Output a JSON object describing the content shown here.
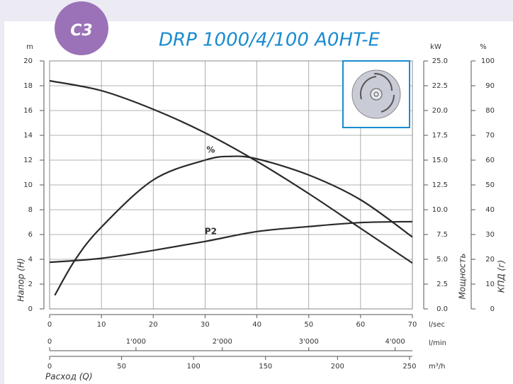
{
  "chart_data": {
    "type": "line",
    "badge": "C3",
    "title": "DRP 1000/4/100 A0HT-E",
    "y_unit": "m",
    "y2_unit": "kW",
    "y3_unit": "%",
    "y_label": "Напор (H)",
    "y2_label": "Мощность",
    "y3_label": "КПД (г)",
    "x_unit": "l/sec",
    "x2_unit": "l/min",
    "x3_unit": "m³/h",
    "x_label": "Расход (Q)",
    "xlim": [
      0,
      70
    ],
    "xticks": [
      0,
      10,
      20,
      30,
      40,
      50,
      60,
      70
    ],
    "x2lim": [
      0,
      4200
    ],
    "x2ticks": [
      0,
      {
        "value": 1000,
        "label": "1'000"
      },
      {
        "value": 2000,
        "label": "2'000"
      },
      {
        "value": 3000,
        "label": "3'000"
      },
      {
        "value": 4000,
        "label": "4'000"
      }
    ],
    "x3lim": [
      0,
      252
    ],
    "x3ticks": [
      0,
      50,
      100,
      150,
      200,
      250
    ],
    "ylim": [
      0,
      20
    ],
    "yticks": [
      0,
      2,
      4,
      6,
      8,
      10,
      12,
      14,
      16,
      18,
      20
    ],
    "y2lim": [
      0,
      25
    ],
    "y2ticks": [
      {
        "value": 0,
        "label": "0.0"
      },
      {
        "value": 2.5,
        "label": "2.5"
      },
      {
        "value": 5,
        "label": "5.0"
      },
      {
        "value": 7.5,
        "label": "7.5"
      },
      {
        "value": 10,
        "label": "10.0"
      },
      {
        "value": 12.5,
        "label": "12.5"
      },
      {
        "value": 15,
        "label": "15.0"
      },
      {
        "value": 17.5,
        "label": "17.5"
      },
      {
        "value": 20,
        "label": "20.0"
      },
      {
        "value": 22.5,
        "label": "22.5"
      },
      {
        "value": 25,
        "label": "25.0"
      }
    ],
    "y3lim": [
      0,
      100
    ],
    "y3ticks": [
      0,
      10,
      20,
      30,
      40,
      50,
      60,
      70,
      80,
      90,
      100
    ],
    "grid": true,
    "series": [
      {
        "color": "#2a2a2a",
        "x": [
          0,
          10,
          20,
          30,
          40,
          50,
          60,
          70
        ],
        "values": [
          18.4,
          17.6,
          16.1,
          14.2,
          11.9,
          9.3,
          6.5,
          3.7
        ]
      },
      {
        "name": "%",
        "axis": "y3",
        "color": "#2a2a2a",
        "x": [
          1,
          5,
          10,
          20,
          30,
          35,
          40,
          50,
          60,
          70
        ],
        "values": [
          5.5,
          20,
          33,
          52,
          60,
          61.5,
          60.5,
          54,
          44,
          29
        ]
      },
      {
        "name": "P2",
        "axis": "y2",
        "color": "#2a2a2a",
        "x": [
          0,
          10,
          20,
          30,
          40,
          50,
          60,
          70
        ],
        "values": [
          4.7,
          5.1,
          5.9,
          6.8,
          7.8,
          8.3,
          8.7,
          8.8
        ]
      }
    ]
  }
}
